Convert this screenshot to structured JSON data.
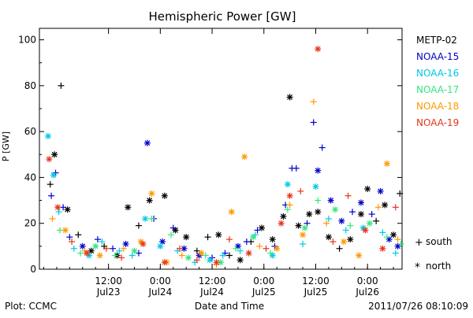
{
  "chart_data": {
    "type": "scatter",
    "title": "Hemispheric Power [GW]",
    "xlabel": "Date and Time",
    "ylabel": "P [GW]",
    "ylim": [
      0,
      105
    ],
    "xlim": [
      "2011-07-22 20:00",
      "2011-07-26 08:00"
    ],
    "y_ticks": [
      0,
      20,
      40,
      60,
      80,
      100
    ],
    "x_ticks": [
      {
        "time": "2011-07-23 12:00",
        "line1": "12:00",
        "line2": "Jul23"
      },
      {
        "time": "2011-07-24 00:00",
        "line1": "0:00",
        "line2": "Jul24"
      },
      {
        "time": "2011-07-24 12:00",
        "line1": "12:00",
        "line2": "Jul24"
      },
      {
        "time": "2011-07-25 00:00",
        "line1": "0:00",
        "line2": "Jul25"
      },
      {
        "time": "2011-07-25 12:00",
        "line1": "12:00",
        "line2": "Jul25"
      },
      {
        "time": "2011-07-26 00:00",
        "line1": "0:00",
        "line2": "Jul26"
      }
    ],
    "symbols": {
      "south": "+",
      "north": "*"
    },
    "grid": false,
    "legend_placement": "right",
    "series": [
      {
        "name": "METP-02",
        "color": "#000000",
        "points": [
          [
            "2011-07-22 22:30",
            37,
            "south"
          ],
          [
            "2011-07-22 23:30",
            50,
            "north"
          ],
          [
            "2011-07-23 01:00",
            80,
            "south"
          ],
          [
            "2011-07-23 02:30",
            26,
            "north"
          ],
          [
            "2011-07-23 05:00",
            15,
            "south"
          ],
          [
            "2011-07-23 08:00",
            8,
            "north"
          ],
          [
            "2011-07-23 11:00",
            10,
            "south"
          ],
          [
            "2011-07-23 14:00",
            6,
            "north"
          ],
          [
            "2011-07-23 16:30",
            27,
            "north"
          ],
          [
            "2011-07-23 19:00",
            19,
            "south"
          ],
          [
            "2011-07-23 21:30",
            30,
            "north"
          ],
          [
            "2011-07-24 01:00",
            32,
            "north"
          ],
          [
            "2011-07-24 03:30",
            17,
            "north"
          ],
          [
            "2011-07-24 06:00",
            14,
            "north"
          ],
          [
            "2011-07-24 08:30",
            8,
            "south"
          ],
          [
            "2011-07-24 11:00",
            14,
            "south"
          ],
          [
            "2011-07-24 13:30",
            15,
            "north"
          ],
          [
            "2011-07-24 16:00",
            6,
            "south"
          ],
          [
            "2011-07-24 18:30",
            4,
            "north"
          ],
          [
            "2011-07-24 21:00",
            12,
            "south"
          ],
          [
            "2011-07-24 23:30",
            18,
            "north"
          ],
          [
            "2011-07-25 02:00",
            13,
            "north"
          ],
          [
            "2011-07-25 04:30",
            23,
            "north"
          ],
          [
            "2011-07-25 06:00",
            75,
            "north"
          ],
          [
            "2011-07-25 08:00",
            19,
            "north"
          ],
          [
            "2011-07-25 10:30",
            24,
            "north"
          ],
          [
            "2011-07-25 12:30",
            25,
            "north"
          ],
          [
            "2011-07-25 15:00",
            14,
            "north"
          ],
          [
            "2011-07-25 17:30",
            9,
            "south"
          ],
          [
            "2011-07-25 20:00",
            13,
            "north"
          ],
          [
            "2011-07-25 22:30",
            24,
            "north"
          ],
          [
            "2011-07-26 00:00",
            35,
            "north"
          ],
          [
            "2011-07-26 02:00",
            21,
            "south"
          ],
          [
            "2011-07-26 04:00",
            28,
            "north"
          ],
          [
            "2011-07-26 06:00",
            15,
            "north"
          ],
          [
            "2011-07-26 07:30",
            33,
            "south"
          ]
        ]
      },
      {
        "name": "NOAA-15",
        "color": "#0000cc",
        "points": [
          [
            "2011-07-22 22:45",
            32,
            "south"
          ],
          [
            "2011-07-22 23:45",
            42,
            "south"
          ],
          [
            "2011-07-23 01:30",
            27,
            "south"
          ],
          [
            "2011-07-23 03:00",
            14,
            "south"
          ],
          [
            "2011-07-23 06:00",
            10,
            "north"
          ],
          [
            "2011-07-23 09:30",
            13,
            "south"
          ],
          [
            "2011-07-23 13:00",
            9,
            "south"
          ],
          [
            "2011-07-23 16:00",
            11,
            "north"
          ],
          [
            "2011-07-23 19:00",
            7,
            "south"
          ],
          [
            "2011-07-23 21:00",
            55,
            "north"
          ],
          [
            "2011-07-23 22:30",
            22,
            "south"
          ],
          [
            "2011-07-24 00:30",
            12,
            "north"
          ],
          [
            "2011-07-24 03:00",
            18,
            "south"
          ],
          [
            "2011-07-24 05:30",
            9,
            "north"
          ],
          [
            "2011-07-24 09:00",
            6,
            "north"
          ],
          [
            "2011-07-24 12:00",
            5,
            "south"
          ],
          [
            "2011-07-24 15:00",
            7,
            "south"
          ],
          [
            "2011-07-24 18:00",
            10,
            "north"
          ],
          [
            "2011-07-24 20:00",
            12,
            "south"
          ],
          [
            "2011-07-24 22:30",
            17,
            "south"
          ],
          [
            "2011-07-25 02:30",
            10,
            "south"
          ],
          [
            "2011-07-25 05:00",
            28,
            "south"
          ],
          [
            "2011-07-25 06:30",
            44,
            "south"
          ],
          [
            "2011-07-25 07:30",
            44,
            "south"
          ],
          [
            "2011-07-25 10:00",
            20,
            "south"
          ],
          [
            "2011-07-25 11:30",
            64,
            "south"
          ],
          [
            "2011-07-25 12:30",
            43,
            "north"
          ],
          [
            "2011-07-25 13:30",
            53,
            "south"
          ],
          [
            "2011-07-25 15:30",
            30,
            "north"
          ],
          [
            "2011-07-25 18:00",
            21,
            "north"
          ],
          [
            "2011-07-25 20:30",
            25,
            "south"
          ],
          [
            "2011-07-25 22:30",
            29,
            "north"
          ],
          [
            "2011-07-26 01:00",
            24,
            "south"
          ],
          [
            "2011-07-26 03:00",
            34,
            "north"
          ],
          [
            "2011-07-26 05:00",
            13,
            "north"
          ],
          [
            "2011-07-26 07:00",
            10,
            "north"
          ]
        ]
      },
      {
        "name": "NOAA-16",
        "color": "#00c8e6",
        "points": [
          [
            "2011-07-22 22:00",
            58,
            "north"
          ],
          [
            "2011-07-22 23:15",
            41,
            "north"
          ],
          [
            "2011-07-23 00:30",
            25,
            "south"
          ],
          [
            "2011-07-23 04:00",
            9,
            "south"
          ],
          [
            "2011-07-23 07:30",
            6,
            "north"
          ],
          [
            "2011-07-23 10:30",
            12,
            "south"
          ],
          [
            "2011-07-23 14:30",
            8,
            "south"
          ],
          [
            "2011-07-23 17:30",
            6,
            "south"
          ],
          [
            "2011-07-23 20:30",
            22,
            "north"
          ],
          [
            "2011-07-24 00:00",
            10,
            "north"
          ],
          [
            "2011-07-24 04:00",
            8,
            "south"
          ],
          [
            "2011-07-24 08:00",
            3,
            "south"
          ],
          [
            "2011-07-24 11:30",
            4,
            "north"
          ],
          [
            "2011-07-24 14:30",
            6,
            "south"
          ],
          [
            "2011-07-24 18:30",
            8,
            "south"
          ],
          [
            "2011-07-24 22:00",
            15,
            "south"
          ],
          [
            "2011-07-25 02:00",
            6,
            "north"
          ],
          [
            "2011-07-25 05:30",
            37,
            "north"
          ],
          [
            "2011-07-25 09:00",
            11,
            "south"
          ],
          [
            "2011-07-25 12:00",
            36,
            "north"
          ],
          [
            "2011-07-25 15:00",
            22,
            "south"
          ],
          [
            "2011-07-25 19:00",
            17,
            "south"
          ],
          [
            "2011-07-25 23:00",
            18,
            "north"
          ],
          [
            "2011-07-26 03:30",
            16,
            "south"
          ],
          [
            "2011-07-26 06:30",
            7,
            "south"
          ]
        ]
      },
      {
        "name": "NOAA-17",
        "color": "#33e680",
        "points": [
          [
            "2011-07-23 00:45",
            17,
            "south"
          ],
          [
            "2011-07-23 05:30",
            7,
            "south"
          ],
          [
            "2011-07-23 09:00",
            10,
            "north"
          ],
          [
            "2011-07-23 13:30",
            6,
            "south"
          ],
          [
            "2011-07-23 18:00",
            8,
            "north"
          ],
          [
            "2011-07-23 22:00",
            22,
            "south"
          ],
          [
            "2011-07-24 02:30",
            15,
            "south"
          ],
          [
            "2011-07-24 06:30",
            5,
            "north"
          ],
          [
            "2011-07-24 10:30",
            6,
            "south"
          ],
          [
            "2011-07-24 14:00",
            3,
            "north"
          ],
          [
            "2011-07-24 17:30",
            9,
            "south"
          ],
          [
            "2011-07-24 21:30",
            14,
            "north"
          ],
          [
            "2011-07-25 01:30",
            7,
            "south"
          ],
          [
            "2011-07-25 05:30",
            26,
            "south"
          ],
          [
            "2011-07-25 09:30",
            18,
            "north"
          ],
          [
            "2011-07-25 12:30",
            30,
            "south"
          ],
          [
            "2011-07-25 16:30",
            26,
            "north"
          ],
          [
            "2011-07-25 20:00",
            19,
            "south"
          ],
          [
            "2011-07-26 00:30",
            20,
            "north"
          ],
          [
            "2011-07-26 04:30",
            14,
            "south"
          ],
          [
            "2011-07-26 07:45",
            11,
            "south"
          ]
        ]
      },
      {
        "name": "NOAA-18",
        "color": "#ff9900",
        "points": [
          [
            "2011-07-22 23:00",
            22,
            "south"
          ],
          [
            "2011-07-23 02:00",
            17,
            "north"
          ],
          [
            "2011-07-23 06:30",
            8,
            "south"
          ],
          [
            "2011-07-23 10:00",
            6,
            "north"
          ],
          [
            "2011-07-23 15:30",
            9,
            "south"
          ],
          [
            "2011-07-23 19:30",
            12,
            "north"
          ],
          [
            "2011-07-23 22:00",
            33,
            "north"
          ],
          [
            "2011-07-24 01:30",
            3,
            "north"
          ],
          [
            "2011-07-24 05:00",
            6,
            "south"
          ],
          [
            "2011-07-24 09:30",
            7,
            "north"
          ],
          [
            "2011-07-24 13:00",
            2,
            "south"
          ],
          [
            "2011-07-24 16:30",
            25,
            "north"
          ],
          [
            "2011-07-24 19:30",
            49,
            "north"
          ],
          [
            "2011-07-24 23:00",
            10,
            "south"
          ],
          [
            "2011-07-25 03:00",
            9,
            "north"
          ],
          [
            "2011-07-25 06:00",
            28,
            "south"
          ],
          [
            "2011-07-25 09:00",
            15,
            "north"
          ],
          [
            "2011-07-25 11:30",
            73,
            "south"
          ],
          [
            "2011-07-25 14:30",
            20,
            "south"
          ],
          [
            "2011-07-25 18:30",
            12,
            "north"
          ],
          [
            "2011-07-25 22:00",
            6,
            "north"
          ],
          [
            "2011-07-26 02:30",
            27,
            "south"
          ],
          [
            "2011-07-26 04:30",
            46,
            "north"
          ],
          [
            "2011-07-26 07:00",
            13,
            "south"
          ]
        ]
      },
      {
        "name": "NOAA-19",
        "color": "#e63319",
        "points": [
          [
            "2011-07-22 22:15",
            48,
            "north"
          ],
          [
            "2011-07-23 00:15",
            27,
            "north"
          ],
          [
            "2011-07-23 03:30",
            12,
            "south"
          ],
          [
            "2011-07-23 07:00",
            7,
            "north"
          ],
          [
            "2011-07-23 11:30",
            9,
            "south"
          ],
          [
            "2011-07-23 15:00",
            5,
            "south"
          ],
          [
            "2011-07-23 20:00",
            11,
            "north"
          ],
          [
            "2011-07-24 01:00",
            3,
            "north"
          ],
          [
            "2011-07-24 04:30",
            9,
            "south"
          ],
          [
            "2011-07-24 08:30",
            4,
            "south"
          ],
          [
            "2011-07-24 13:00",
            3,
            "north"
          ],
          [
            "2011-07-24 16:00",
            13,
            "south"
          ],
          [
            "2011-07-24 20:30",
            7,
            "north"
          ],
          [
            "2011-07-25 00:30",
            9,
            "south"
          ],
          [
            "2011-07-25 04:00",
            20,
            "north"
          ],
          [
            "2011-07-25 06:00",
            32,
            "north"
          ],
          [
            "2011-07-25 08:30",
            34,
            "south"
          ],
          [
            "2011-07-25 12:30",
            96,
            "north"
          ],
          [
            "2011-07-25 16:00",
            12,
            "south"
          ],
          [
            "2011-07-25 19:30",
            32,
            "south"
          ],
          [
            "2011-07-25 23:30",
            17,
            "north"
          ],
          [
            "2011-07-26 03:30",
            9,
            "north"
          ],
          [
            "2011-07-26 06:30",
            27,
            "south"
          ]
        ]
      }
    ]
  },
  "legend_symbols": {
    "south": "south",
    "north": "north"
  },
  "footer": {
    "plot_credit": "Plot: CCMC",
    "timestamp": "2011/07/26 08:10:09"
  }
}
